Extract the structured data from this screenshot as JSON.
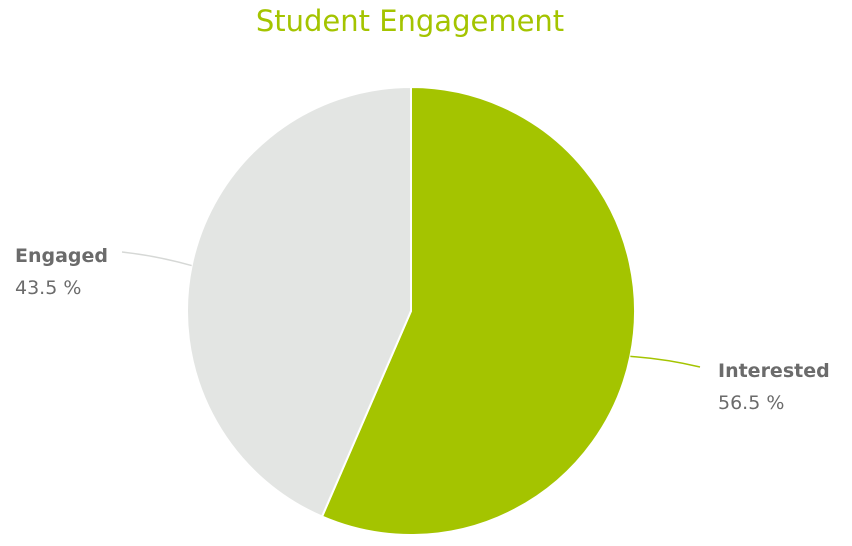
{
  "chart_data": {
    "type": "pie",
    "title": "Student Engagement",
    "slices": [
      {
        "label": "Interested",
        "value": 56.5,
        "display": "56.5 %",
        "color": "#a4c400"
      },
      {
        "label": "Engaged",
        "value": 43.5,
        "display": "43.5 %",
        "color": "#e3e5e3"
      }
    ],
    "legend": "none",
    "title_color": "#a4c400",
    "label_color": "#6b6b6b"
  }
}
